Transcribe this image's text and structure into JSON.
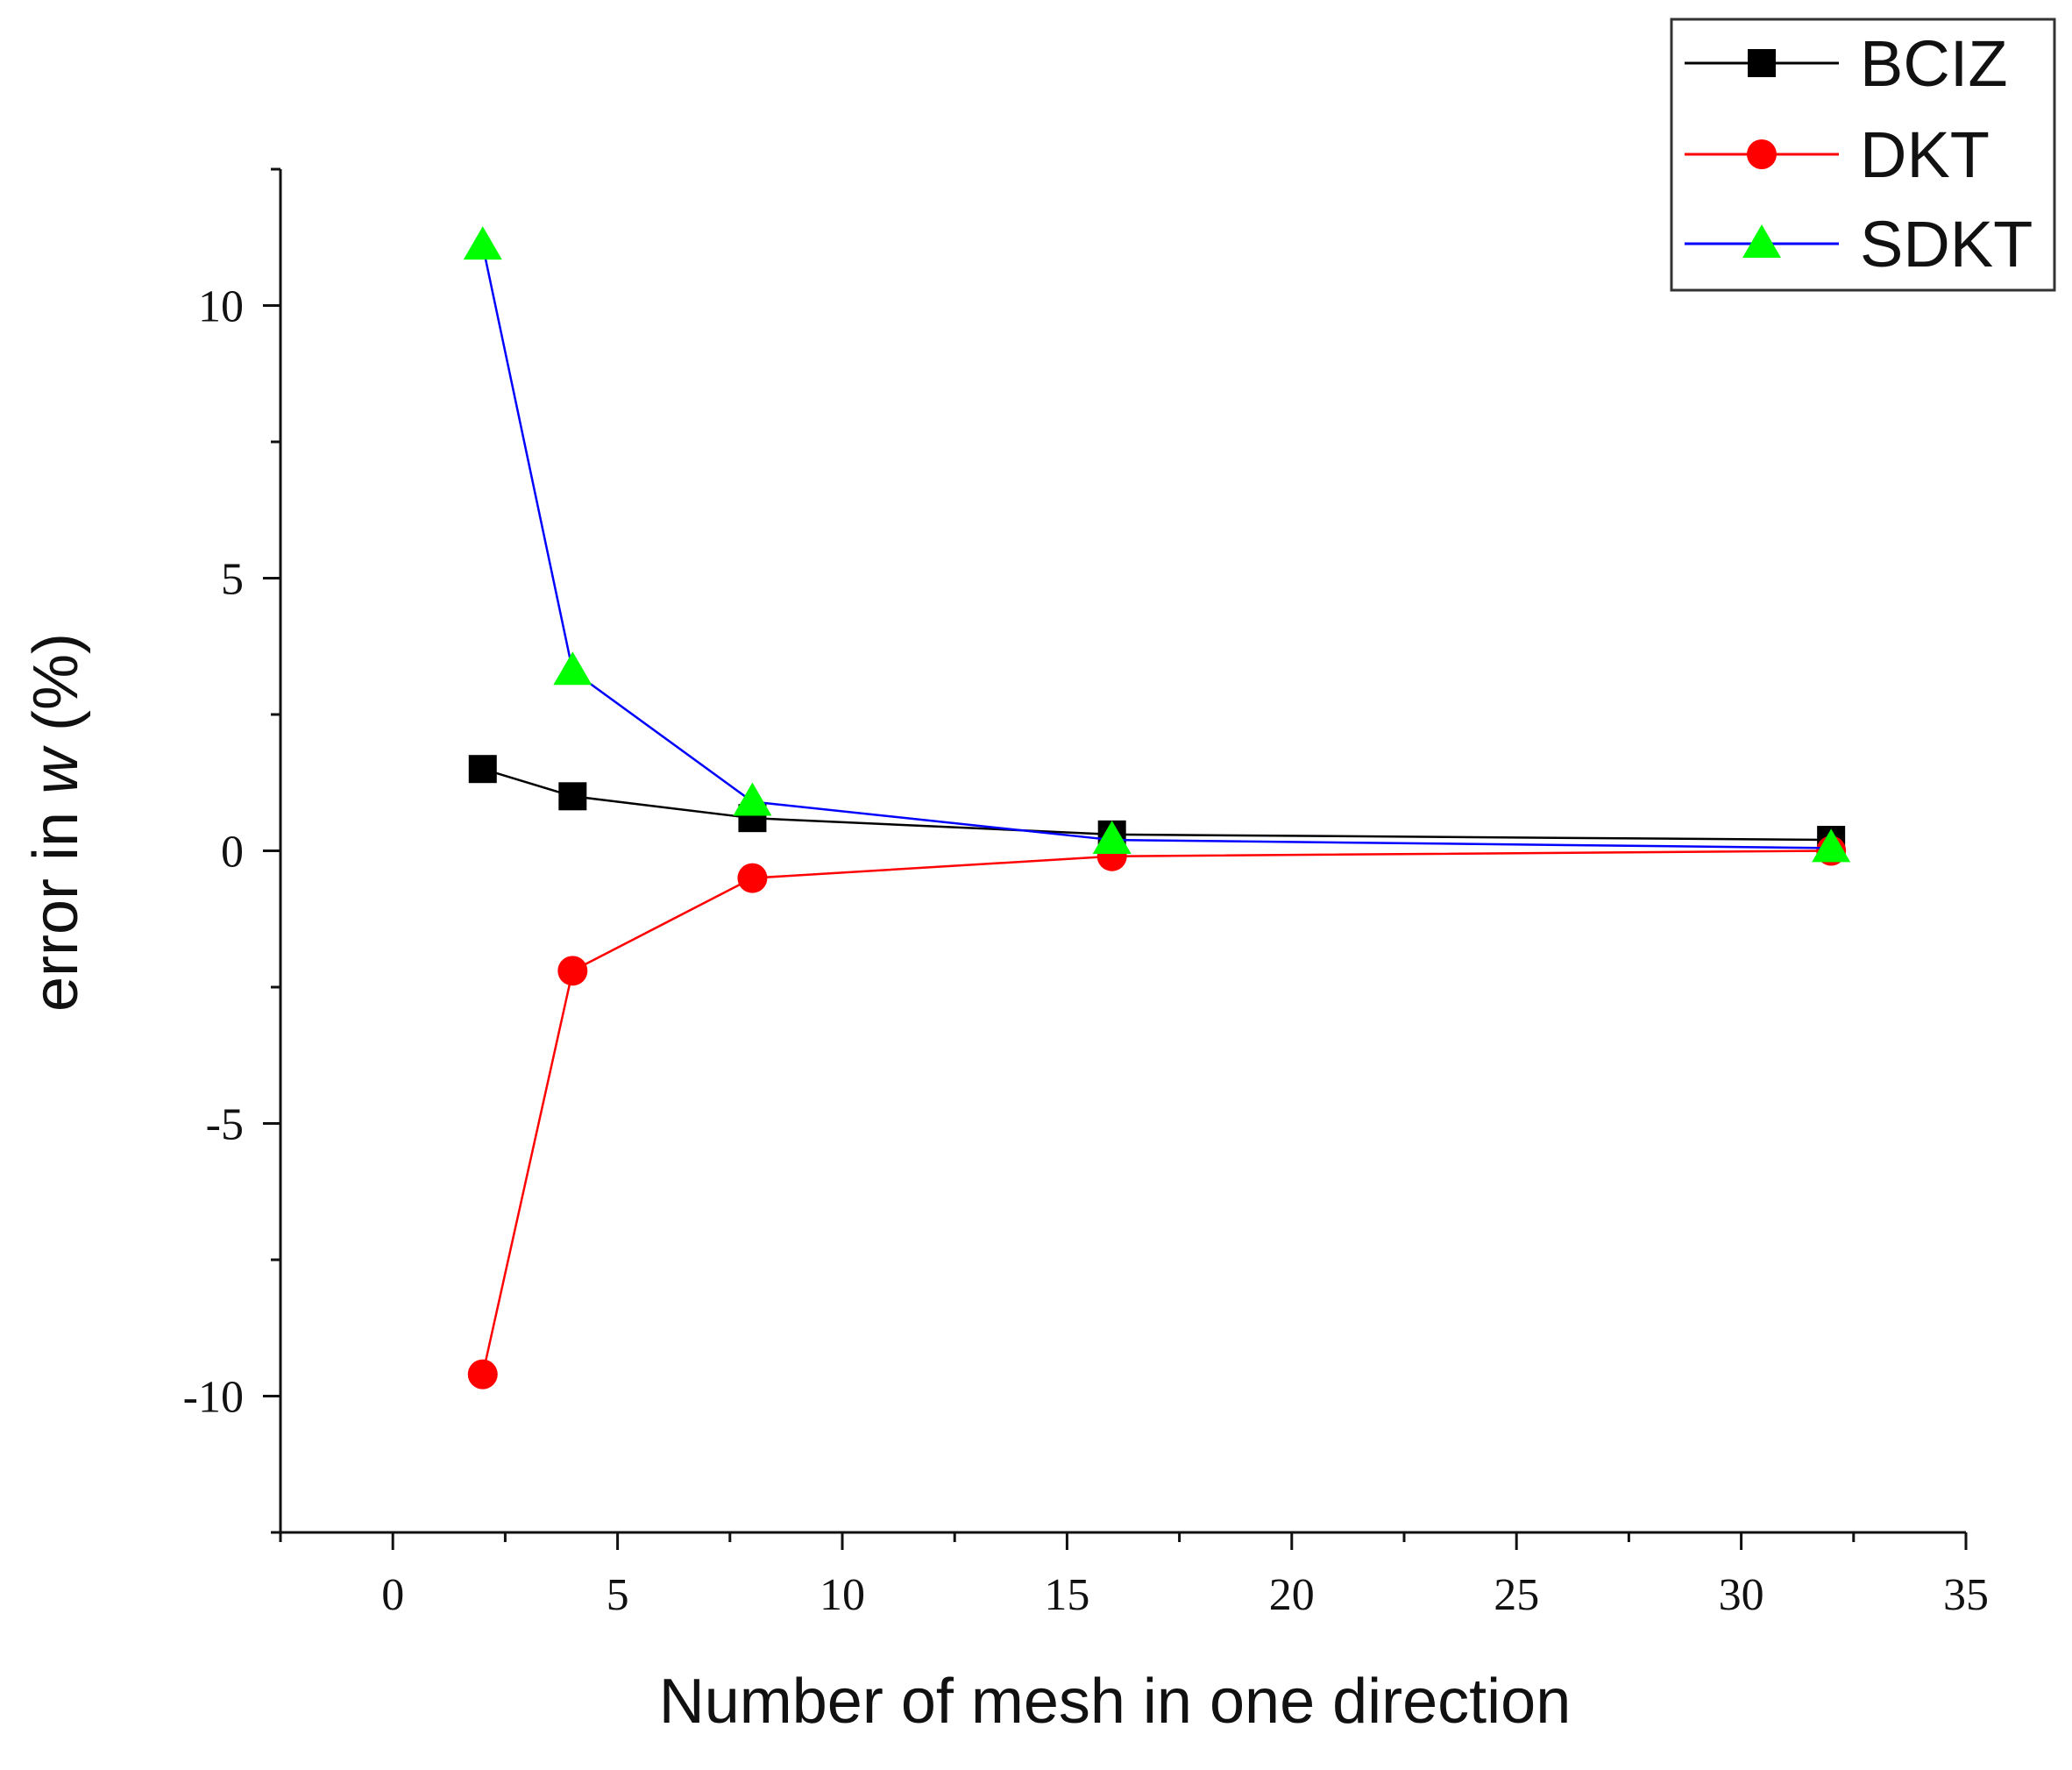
{
  "chart_data": {
    "type": "line",
    "title": "",
    "xlabel": "Number of mesh in one direction",
    "ylabel_prefix": "error in ",
    "ylabel_var": "w",
    "ylabel_suffix": " (%)",
    "xlim": [
      -2.5,
      35
    ],
    "ylim": [
      -12.5,
      12.5
    ],
    "xticks": [
      0,
      5,
      10,
      15,
      20,
      25,
      30,
      35
    ],
    "yticks": [
      -10,
      -5,
      0,
      5,
      10
    ],
    "xtick_labels": [
      "0",
      "5",
      "10",
      "15",
      "20",
      "25",
      "30",
      "35"
    ],
    "ytick_labels": [
      "-10",
      "-5",
      "0",
      "5",
      "10"
    ],
    "legend_position": "top-right",
    "grid": false,
    "series": [
      {
        "name": "BCIZ",
        "marker": "square",
        "line_color": "#000000",
        "marker_color": "#000000",
        "x": [
          2,
          4,
          8,
          16,
          32
        ],
        "y": [
          1.5,
          1.0,
          0.6,
          0.3,
          0.2
        ]
      },
      {
        "name": "DKT",
        "marker": "circle",
        "line_color": "#ff0000",
        "marker_color": "#ff0000",
        "x": [
          2,
          4,
          8,
          16,
          32
        ],
        "y": [
          -9.6,
          -2.2,
          -0.5,
          -0.1,
          0.0
        ]
      },
      {
        "name": "SDKT",
        "marker": "triangle",
        "line_color": "#0000ff",
        "marker_color": "#00ff00",
        "x": [
          2,
          4,
          8,
          16,
          32
        ],
        "y": [
          11.1,
          3.3,
          0.9,
          0.2,
          0.05
        ]
      }
    ]
  }
}
